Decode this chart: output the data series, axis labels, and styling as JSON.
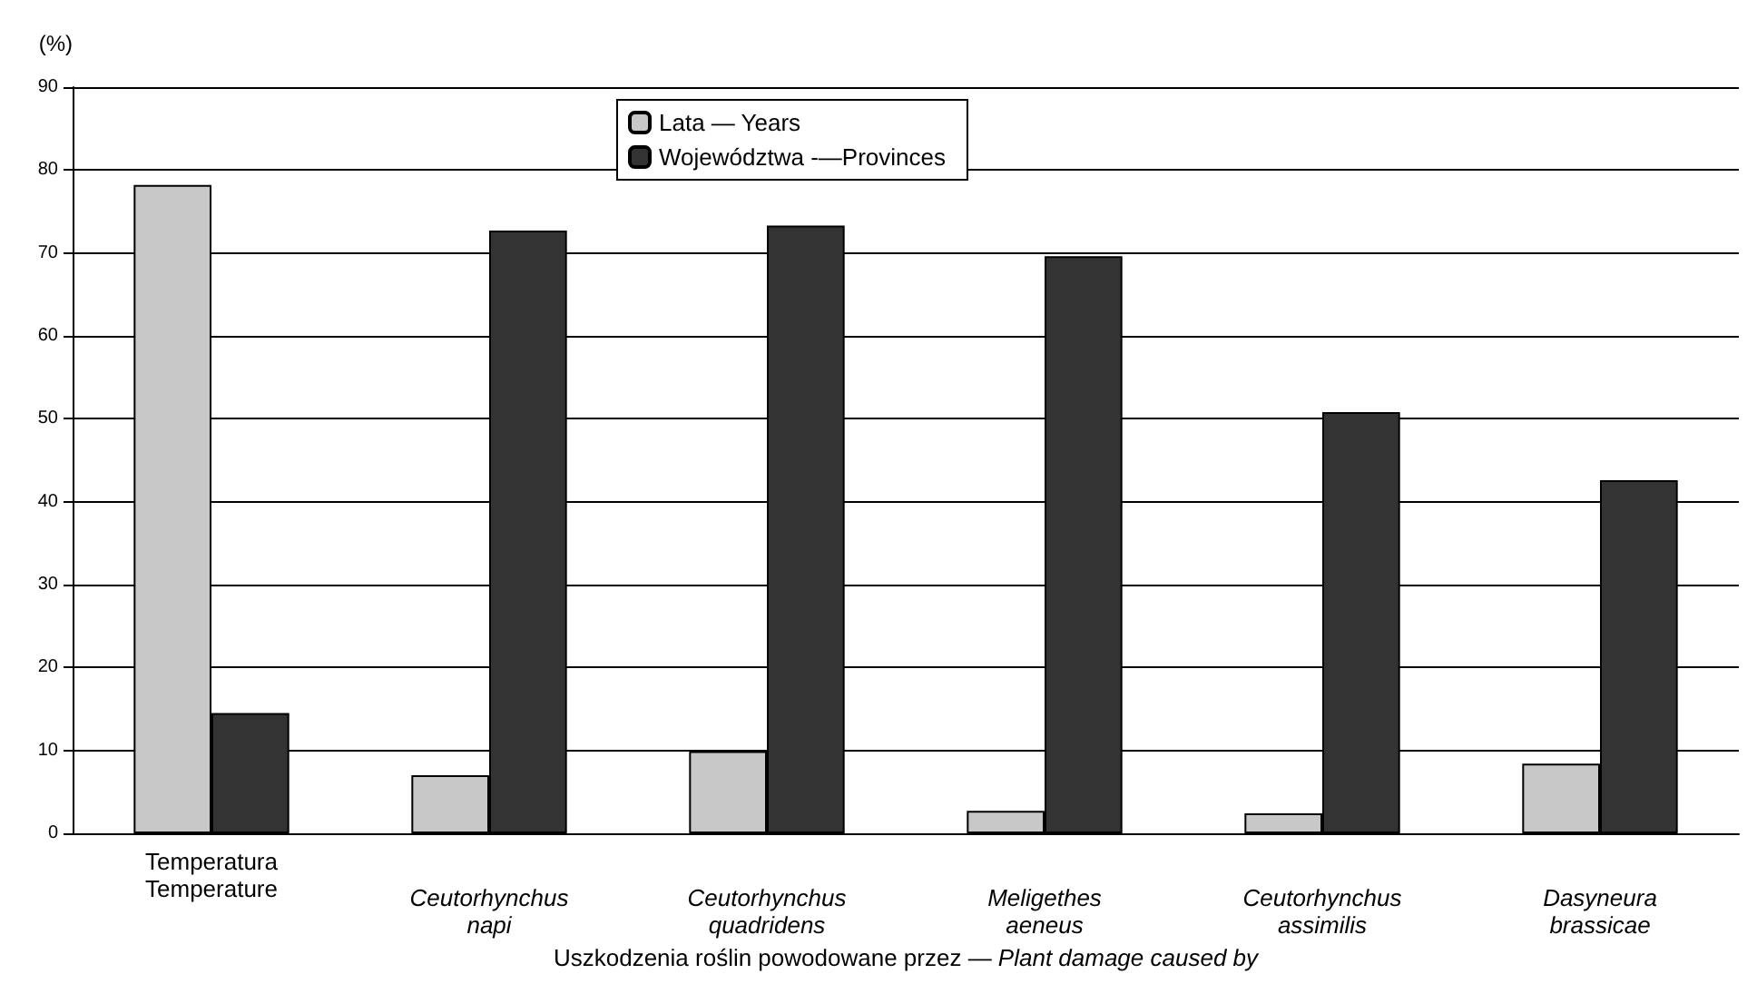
{
  "chart_data": {
    "type": "bar",
    "ylabel": "(%)",
    "xlabel": "Uszkodzenia roślin powodowane przez — Plant damage caused by",
    "categories": [
      "Temperatura\nTemperature",
      "Ceutorhynchus\nnapi",
      "Ceutorhynchus\nquadridens",
      "Meligethes\naeneus",
      "Ceutorhynchus\nassimilis",
      "Dasyneura\nbrassicae"
    ],
    "series": [
      {
        "name": "Lata — Years",
        "color": "#c8c8c8",
        "values": [
          78.2,
          7.0,
          9.9,
          2.7,
          2.4,
          8.4
        ]
      },
      {
        "name": "Województwa -—Provinces",
        "color": "#333333",
        "values": [
          14.5,
          72.7,
          73.3,
          69.6,
          50.8,
          42.6
        ]
      }
    ],
    "ylim": [
      0,
      90
    ],
    "yticks": [
      0,
      10,
      20,
      30,
      40,
      50,
      60,
      70,
      80,
      90
    ],
    "grid": "y",
    "legend": "top"
  }
}
